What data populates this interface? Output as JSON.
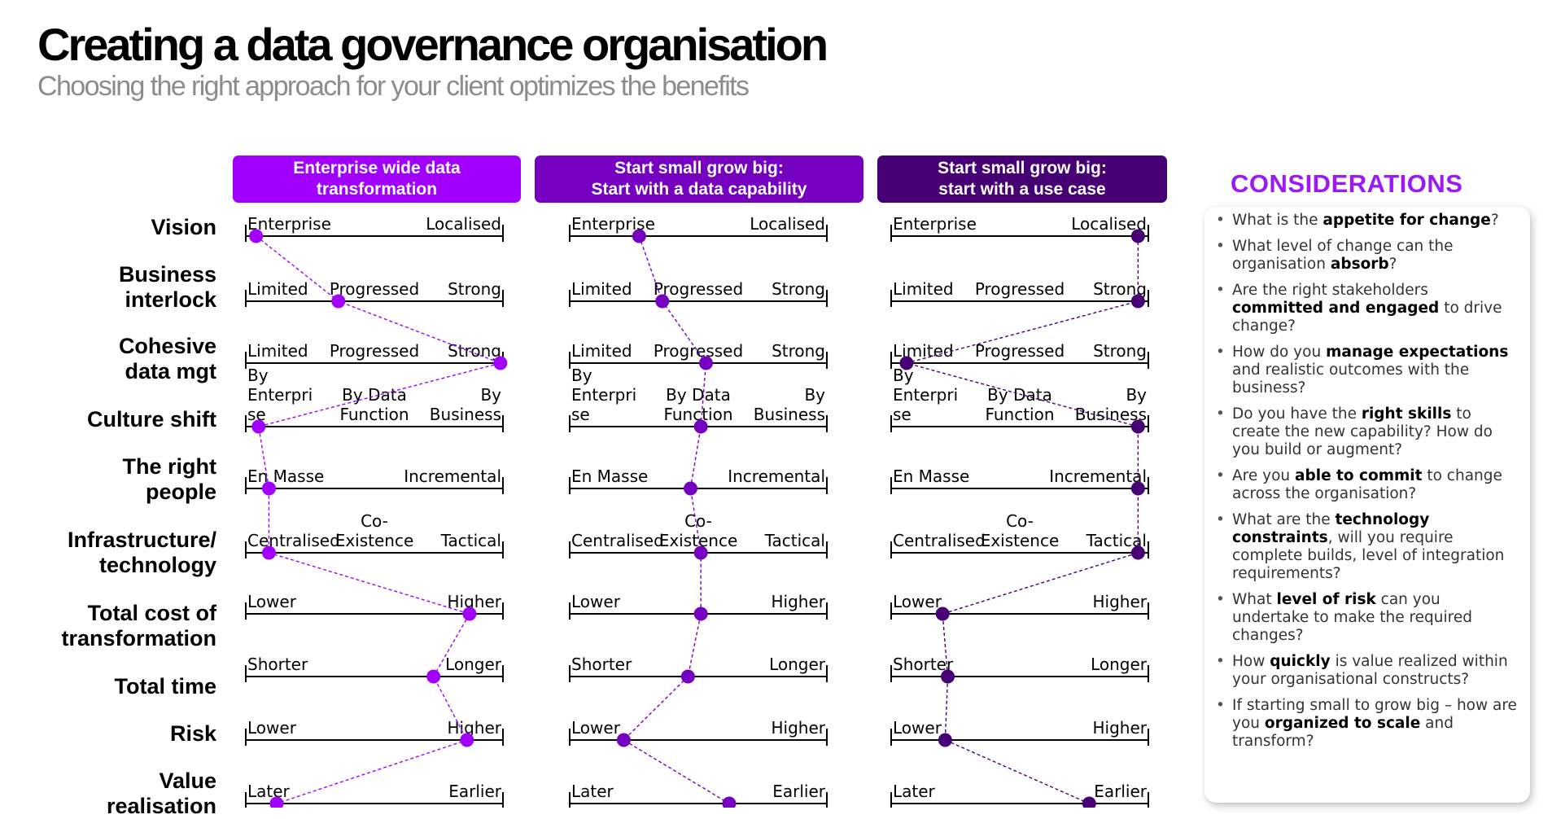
{
  "title": "Creating a data governance organisation",
  "subtitle": "Choosing the right approach for your client optimizes the benefits",
  "colors": {
    "col1": "#a100ff",
    "col2": "#7500c0",
    "col3": "#460073",
    "accent": "#9a19f5"
  },
  "columns": [
    {
      "header_line1": "Enterprise wide data",
      "header_line2": "transformation"
    },
    {
      "header_line1": "Start small grow big:",
      "header_line2": "Start with  a data capability"
    },
    {
      "header_line1": "Start small grow big:",
      "header_line2": "start with a use case"
    }
  ],
  "rows": [
    {
      "label": [
        "Vision"
      ],
      "scale": [
        "Enterprise",
        "Localised"
      ],
      "positions": [
        0.04,
        0.27,
        0.96
      ]
    },
    {
      "label": [
        "Business",
        "interlock"
      ],
      "scale": [
        "Limited",
        "Progressed",
        "Strong"
      ],
      "positions": [
        0.36,
        0.36,
        0.96
      ]
    },
    {
      "label": [
        "Cohesive",
        "data mgt"
      ],
      "scale": [
        "Limited",
        "Progressed",
        "Strong"
      ],
      "positions": [
        0.99,
        0.53,
        0.06
      ]
    },
    {
      "label": [
        "Culture shift"
      ],
      "scale": [
        "By Enterprise",
        "By Data Function",
        "By Business"
      ],
      "positions": [
        0.05,
        0.51,
        0.96
      ]
    },
    {
      "label": [
        "The right",
        "people"
      ],
      "scale": [
        "En Masse",
        "Incremental"
      ],
      "positions": [
        0.09,
        0.47,
        0.96
      ]
    },
    {
      "label": [
        "Infrastructure/",
        "technology"
      ],
      "scale": [
        "Centralised",
        "Co-Existence",
        "Tactical"
      ],
      "positions": [
        0.09,
        0.51,
        0.96
      ]
    },
    {
      "label": [
        "Total cost of",
        "transformation"
      ],
      "scale": [
        "Lower",
        "Higher"
      ],
      "positions": [
        0.87,
        0.51,
        0.2
      ]
    },
    {
      "label": [
        "Total time"
      ],
      "scale": [
        "Shorter",
        "Longer"
      ],
      "positions": [
        0.73,
        0.46,
        0.22
      ]
    },
    {
      "label": [
        "Risk"
      ],
      "scale": [
        "Lower",
        "Higher"
      ],
      "positions": [
        0.86,
        0.21,
        0.21
      ]
    },
    {
      "label": [
        "Value",
        "realisation"
      ],
      "scale": [
        "Later",
        "Earlier"
      ],
      "positions": [
        0.12,
        0.62,
        0.77
      ]
    }
  ],
  "considerations": {
    "title": "CONSIDERATIONS",
    "items": [
      {
        "parts": [
          {
            "t": "What is the "
          },
          {
            "t": "appetite for change",
            "b": true
          },
          {
            "t": "?"
          }
        ]
      },
      {
        "parts": [
          {
            "t": "What level of change can the organisation "
          },
          {
            "t": "absorb",
            "b": true
          },
          {
            "t": "?"
          }
        ]
      },
      {
        "parts": [
          {
            "t": "Are the right stakeholders "
          },
          {
            "t": "committed and engaged",
            "b": true
          },
          {
            "t": " to drive change?"
          }
        ]
      },
      {
        "parts": [
          {
            "t": "How do you "
          },
          {
            "t": "manage expectations",
            "b": true
          },
          {
            "t": " and realistic outcomes with the business?"
          }
        ]
      },
      {
        "parts": [
          {
            "t": "Do you have the "
          },
          {
            "t": "right skills",
            "b": true
          },
          {
            "t": " to create the new capability? How do you build or augment?"
          }
        ]
      },
      {
        "parts": [
          {
            "t": "Are you "
          },
          {
            "t": "able to commit",
            "b": true
          },
          {
            "t": " to change across the organisation?"
          }
        ]
      },
      {
        "parts": [
          {
            "t": "What are the "
          },
          {
            "t": "technology constraints",
            "b": true
          },
          {
            "t": ", will you require complete builds, level of integration requirements?"
          }
        ]
      },
      {
        "parts": [
          {
            "t": "What "
          },
          {
            "t": "level of risk",
            "b": true
          },
          {
            "t": " can you undertake to make the required changes?"
          }
        ]
      },
      {
        "parts": [
          {
            "t": "How "
          },
          {
            "t": "quickly",
            "b": true
          },
          {
            "t": " is value realized within your organisational constructs?"
          }
        ]
      },
      {
        "parts": [
          {
            "t": "If starting small to grow big – how are you "
          },
          {
            "t": "organized to scale",
            "b": true
          },
          {
            "t": " and transform?"
          }
        ]
      }
    ]
  }
}
